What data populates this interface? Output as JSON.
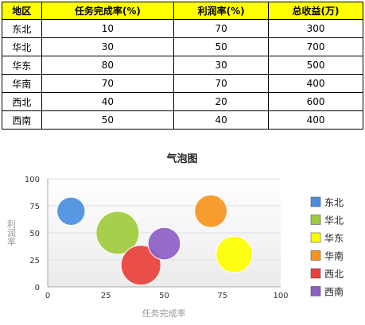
{
  "table": {
    "headers": [
      "地区",
      "任务完成率(%)",
      "利润率(%)",
      "总收益(万)"
    ],
    "rows": [
      [
        "东北",
        "10",
        "70",
        "300"
      ],
      [
        "华北",
        "30",
        "50",
        "700"
      ],
      [
        "华东",
        "80",
        "30",
        "500"
      ],
      [
        "华南",
        "70",
        "70",
        "400"
      ],
      [
        "西北",
        "40",
        "20",
        "600"
      ],
      [
        "西南",
        "50",
        "40",
        "400"
      ]
    ]
  },
  "chart_data": {
    "type": "scatter",
    "title": "气泡图",
    "xlabel": "任务完成率",
    "ylabel": "利润率",
    "xlim": [
      0,
      100
    ],
    "ylim": [
      0,
      100
    ],
    "xticks": [
      "0",
      "25",
      "50",
      "75",
      "100"
    ],
    "yticks": [
      "0",
      "25",
      "50",
      "75",
      "100"
    ],
    "grid": true,
    "legend_position": "right",
    "series": [
      {
        "name": "东北",
        "x": 10,
        "y": 70,
        "size": 300,
        "color": "#4a8ee0"
      },
      {
        "name": "华北",
        "x": 30,
        "y": 50,
        "size": 700,
        "color": "#9ecc3c"
      },
      {
        "name": "华东",
        "x": 80,
        "y": 30,
        "size": 500,
        "color": "#ffff00"
      },
      {
        "name": "华南",
        "x": 70,
        "y": 70,
        "size": 400,
        "color": "#f7941d"
      },
      {
        "name": "西北",
        "x": 40,
        "y": 20,
        "size": 600,
        "color": "#e8413a"
      },
      {
        "name": "西南",
        "x": 50,
        "y": 40,
        "size": 400,
        "color": "#8d5ec4"
      }
    ]
  }
}
